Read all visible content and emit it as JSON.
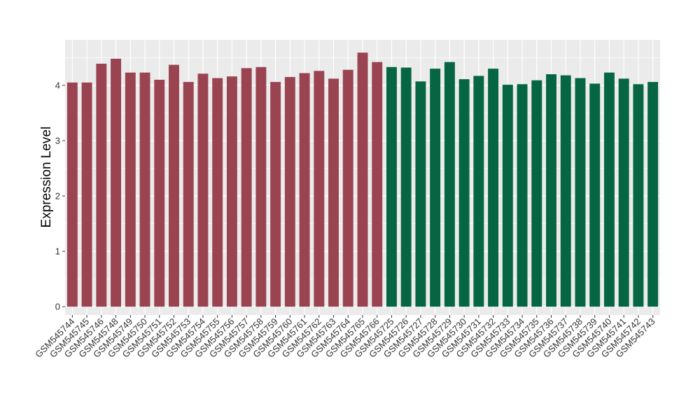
{
  "chart_data": {
    "type": "bar",
    "ylabel": "Expression Level",
    "xlabel": "",
    "ylim": [
      -0.15,
      4.82
    ],
    "yticks": [
      0,
      1,
      2,
      3,
      4
    ],
    "grid": true,
    "legend": "none",
    "colors": {
      "group1": "#9a4452",
      "group2": "#066644",
      "panel": "#ebebeb",
      "grid": "#ffffff"
    },
    "categories": [
      "GSM545744",
      "GSM545745",
      "GSM545746",
      "GSM545748",
      "GSM545749",
      "GSM545750",
      "GSM545751",
      "GSM545752",
      "GSM545753",
      "GSM545754",
      "GSM545755",
      "GSM545756",
      "GSM545757",
      "GSM545758",
      "GSM545759",
      "GSM545760",
      "GSM545761",
      "GSM545762",
      "GSM545763",
      "GSM545764",
      "GSM545765",
      "GSM545766",
      "GSM545725",
      "GSM545726",
      "GSM545727",
      "GSM545728",
      "GSM545729",
      "GSM545730",
      "GSM545731",
      "GSM545732",
      "GSM545733",
      "GSM545734",
      "GSM545735",
      "GSM545736",
      "GSM545737",
      "GSM545738",
      "GSM545739",
      "GSM545740",
      "GSM545741",
      "GSM545742",
      "GSM545743"
    ],
    "values": [
      4.05,
      4.05,
      4.39,
      4.48,
      4.23,
      4.23,
      4.1,
      4.37,
      4.06,
      4.21,
      4.13,
      4.16,
      4.31,
      4.33,
      4.06,
      4.15,
      4.22,
      4.26,
      4.12,
      4.28,
      4.59,
      4.42,
      4.33,
      4.32,
      4.07,
      4.3,
      4.42,
      4.11,
      4.17,
      4.3,
      4.01,
      4.02,
      4.09,
      4.2,
      4.18,
      4.13,
      4.03,
      4.23,
      4.12,
      4.02,
      4.06
    ],
    "groups": [
      0,
      0,
      0,
      0,
      0,
      0,
      0,
      0,
      0,
      0,
      0,
      0,
      0,
      0,
      0,
      0,
      0,
      0,
      0,
      0,
      0,
      0,
      1,
      1,
      1,
      1,
      1,
      1,
      1,
      1,
      1,
      1,
      1,
      1,
      1,
      1,
      1,
      1,
      1,
      1,
      1
    ]
  }
}
